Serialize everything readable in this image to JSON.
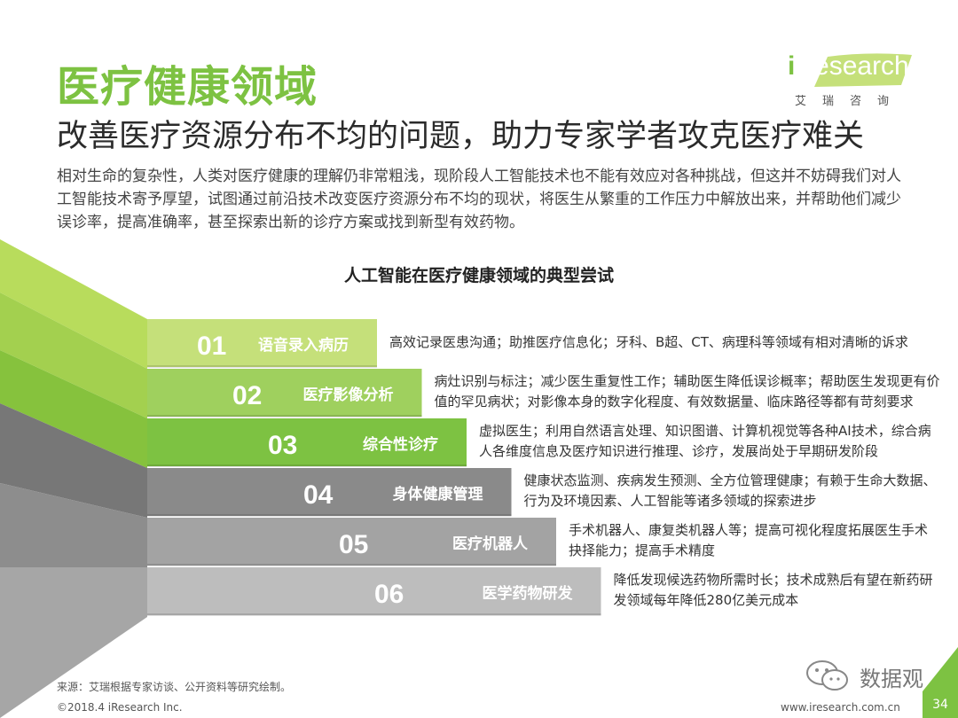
{
  "header": {
    "title": "医疗健康领域",
    "subtitle": "改善医疗资源分布不均的问题，助力专家学者攻克医疗难关",
    "intro": "相对生命的复杂性，人类对医疗健康的理解仍非常粗浅，现阶段人工智能技术也不能有效应对各种挑战，但这并不妨碍我们对人工智能技术寄予厚望，试图通过前沿技术改变医疗资源分布不均的现状，将医生从繁重的工作压力中解放出来，并帮助他们减少误诊率，提高准确率，甚至探索出新的诊疗方案或找到新型有效药物。"
  },
  "logo": {
    "brand_i": "i",
    "brand_rest": "Research",
    "sub": "艾瑞咨询"
  },
  "chart": {
    "title": "人工智能在医疗健康领域的典型尝试",
    "steps": [
      {
        "num": "01",
        "label": "语音录入病历",
        "desc": "高效记录医患沟通；助推医疗信息化；牙科、B超、CT、病理科等领域有相对清晰的诉求",
        "color": "#c5e07a"
      },
      {
        "num": "02",
        "label": "医疗影像分析",
        "desc": "病灶识别与标注；减少医生重复性工作；辅助医生降低误诊概率；帮助医生发现更有价值的罕见病状；对影像本身的数字化程度、有效数据量、临床路径等都有苛刻要求",
        "color": "#9fd05e"
      },
      {
        "num": "03",
        "label": "综合性诊疗",
        "desc": "虚拟医生；利用自然语言处理、知识图谱、计算机视觉等各种AI技术，综合病人各维度信息及医疗知识进行推理、诊疗，发展尚处于早期研发阶段",
        "color": "#7dc242"
      },
      {
        "num": "04",
        "label": "身体健康管理",
        "desc": "健康状态监测、疾病发生预测、全方位管理健康；有赖于生命大数据、行为及环境因素、人工智能等诸多领域的探索进步",
        "color": "#8a8a8a"
      },
      {
        "num": "05",
        "label": "医疗机器人",
        "desc": "手术机器人、康复类机器人等；提高可视化程度拓展医生手术抉择能力；提高手术精度",
        "color": "#a3a3a3"
      },
      {
        "num": "06",
        "label": "医学药物研发",
        "desc": "降低发现候选药物所需时长；技术成熟后有望在新药研发领域每年降低280亿美元成本",
        "color": "#bdbdbd"
      }
    ]
  },
  "footer": {
    "source": "来源：艾瑞根据专家访谈、公开资料等研究绘制。",
    "copyright": "©2018.4 iResearch Inc.",
    "website": "www.iresearch.com.cn",
    "page": "34",
    "wechat": "数据观"
  }
}
